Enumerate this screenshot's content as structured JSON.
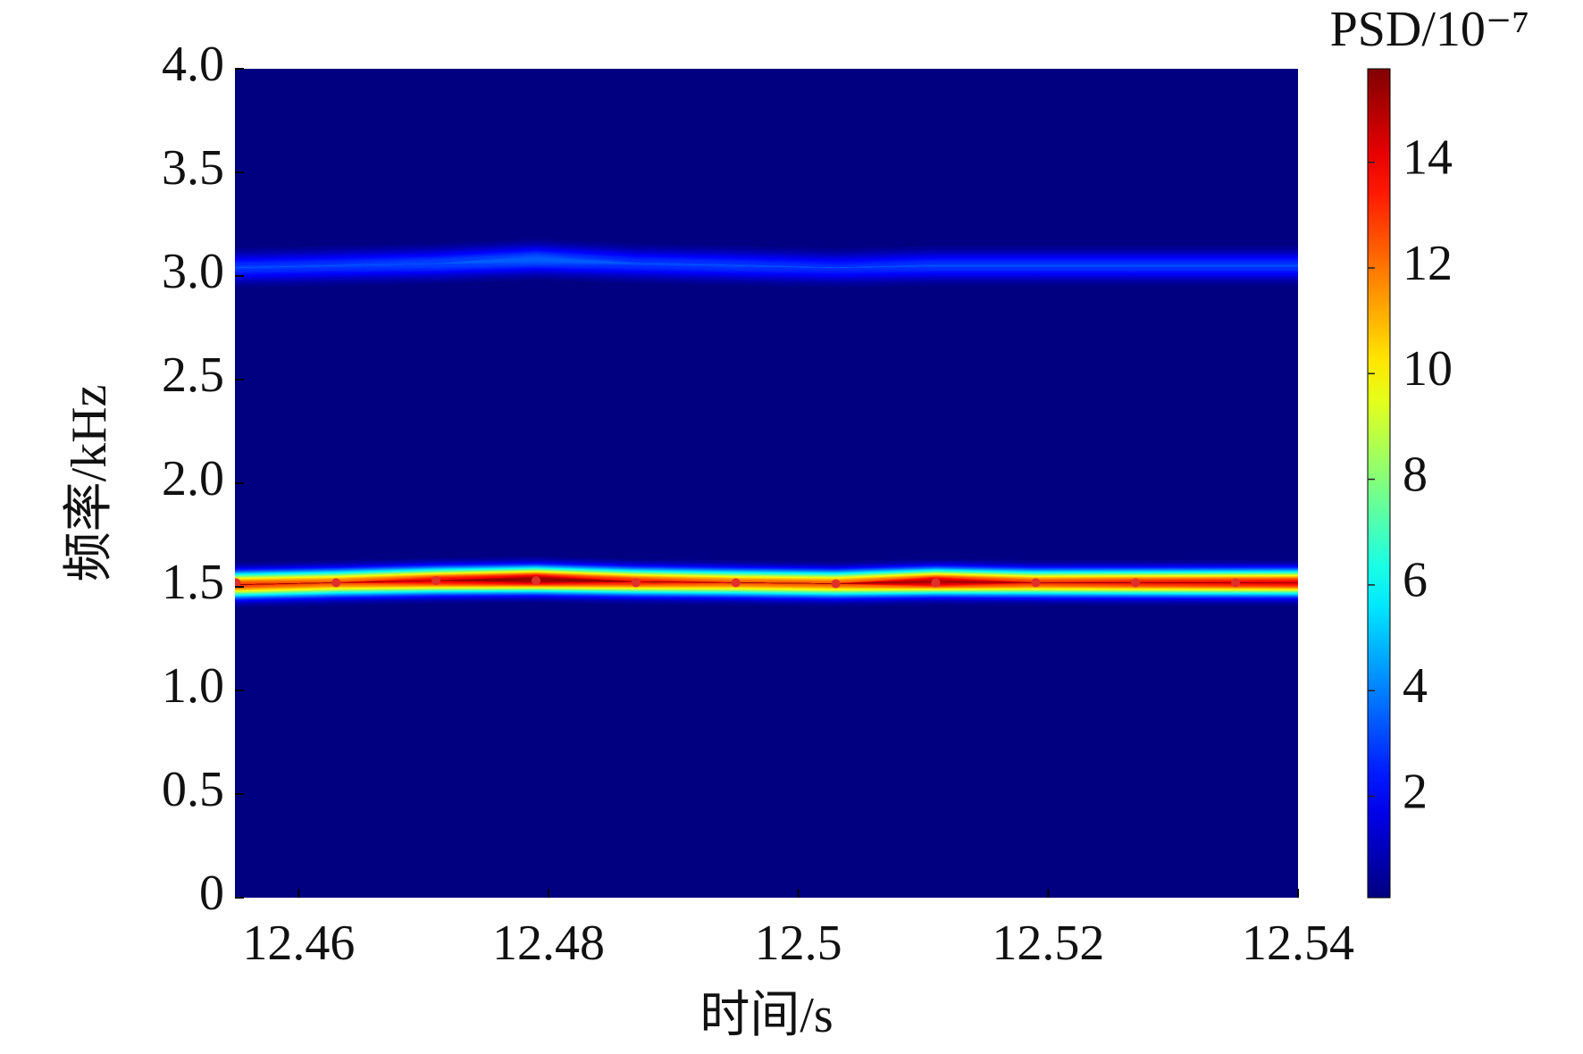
{
  "chart_data": {
    "type": "spectrogram",
    "xlabel": "时间/s",
    "ylabel": "频率/kHz",
    "colorbar_label": "PSD/10⁻⁷",
    "x": [
      12.455,
      12.463,
      12.471,
      12.479,
      12.487,
      12.495,
      12.503,
      12.511,
      12.519,
      12.527,
      12.535
    ],
    "bands": [
      {
        "freq": [
          1.51,
          1.52,
          1.53,
          1.535,
          1.525,
          1.52,
          1.515,
          1.525,
          1.52,
          1.52,
          1.52
        ],
        "psd": [
          13,
          12.5,
          14,
          15.6,
          13.5,
          12.5,
          12.5,
          15,
          13,
          13.5,
          14
        ],
        "bandwidth": 0.04
      },
      {
        "freq": [
          3.04,
          3.05,
          3.06,
          3.08,
          3.06,
          3.05,
          3.04,
          3.05,
          3.05,
          3.05,
          3.05
        ],
        "psd": [
          3,
          3,
          3.2,
          3.6,
          3,
          3,
          2.8,
          3,
          3,
          3,
          3
        ],
        "bandwidth": 0.045
      }
    ],
    "ridge": [
      1.52,
      1.52,
      1.53,
      1.53,
      1.52,
      1.52,
      1.515,
      1.52,
      1.52,
      1.52,
      1.52
    ],
    "ridge_color": "#e0302a",
    "colormap": "jet",
    "xlim": [
      12.4549,
      12.54
    ],
    "xticks": [
      12.46,
      12.48,
      12.5,
      12.52,
      12.54
    ],
    "ylim": [
      0,
      4
    ],
    "yticks": [
      0,
      0.5,
      {
        "value": 1,
        "label": "1.0"
      },
      1.5,
      {
        "value": 2,
        "label": "2.0"
      },
      2.5,
      {
        "value": 3,
        "label": "3.0"
      },
      3.5,
      {
        "value": 4,
        "label": "4.0"
      }
    ],
    "clim": [
      0.08,
      15.77
    ],
    "cticks": [
      2,
      4,
      6,
      8,
      10,
      12,
      14
    ]
  }
}
